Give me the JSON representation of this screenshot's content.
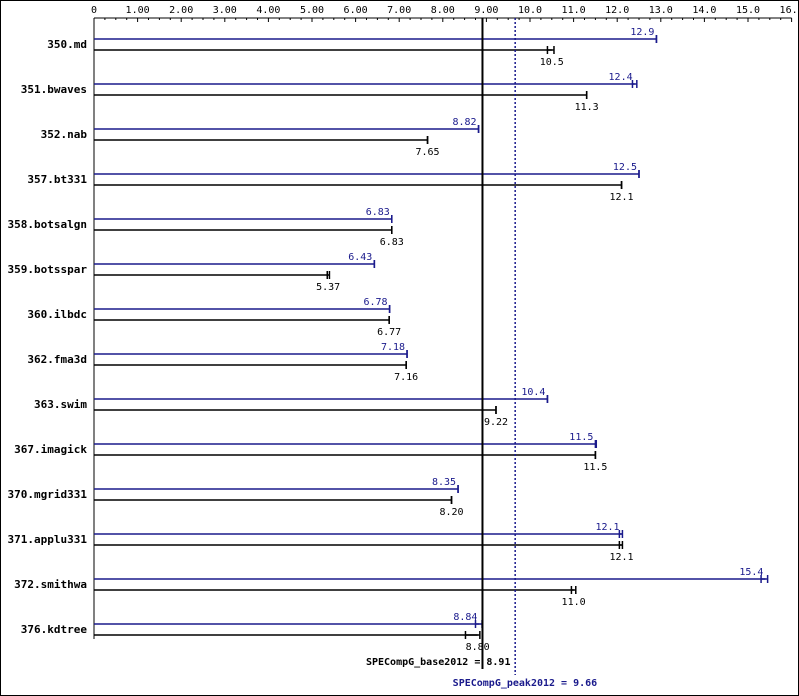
{
  "chart_data": {
    "type": "bar",
    "orientation": "horizontal",
    "xlim": [
      0,
      16.0
    ],
    "x_ticks": [
      "0",
      "1.00",
      "2.00",
      "3.00",
      "4.00",
      "5.00",
      "6.00",
      "7.00",
      "8.00",
      "9.00",
      "10.0",
      "11.0",
      "12.0",
      "13.0",
      "14.0",
      "15.0",
      "16.0"
    ],
    "x_tick_values": [
      0,
      1,
      2,
      3,
      4,
      5,
      6,
      7,
      8,
      9,
      10,
      11,
      12,
      13,
      14,
      15,
      16
    ],
    "colors": {
      "peak": "#1a1a8c",
      "base": "#000000",
      "axis": "#000000"
    },
    "categories": [
      "350.md",
      "351.bwaves",
      "352.nab",
      "357.bt331",
      "358.botsalgn",
      "359.botsspar",
      "360.ilbdc",
      "362.fma3d",
      "363.swim",
      "367.imagick",
      "370.mgrid331",
      "371.applu331",
      "372.smithwa",
      "376.kdtree"
    ],
    "series": [
      {
        "key": "peak",
        "values": [
          12.9,
          12.4,
          8.82,
          12.5,
          6.83,
          6.43,
          6.78,
          7.18,
          10.4,
          11.5,
          8.35,
          12.1,
          15.4,
          8.84
        ],
        "labels": [
          "12.9",
          "12.4",
          "8.82",
          "12.5",
          "6.83",
          "6.43",
          "6.78",
          "7.18",
          "10.4",
          "11.5",
          "8.35",
          "12.1",
          "15.4",
          "8.84"
        ],
        "whisker_min": [
          12.9,
          12.35,
          8.82,
          12.5,
          6.83,
          6.43,
          6.78,
          7.18,
          10.4,
          11.5,
          8.35,
          12.05,
          15.3,
          8.75
        ],
        "whisker_max": [
          12.9,
          12.45,
          8.82,
          12.5,
          6.83,
          6.43,
          6.78,
          7.18,
          10.4,
          11.52,
          8.35,
          12.12,
          15.45,
          8.9
        ]
      },
      {
        "key": "base",
        "values": [
          10.5,
          11.3,
          7.65,
          12.1,
          6.83,
          5.37,
          6.77,
          7.16,
          9.22,
          11.5,
          8.2,
          12.1,
          11.0,
          8.8
        ],
        "labels": [
          "10.5",
          "11.3",
          "7.65",
          "12.1",
          "6.83",
          "5.37",
          "6.77",
          "7.16",
          "9.22",
          "11.5",
          "8.20",
          "12.1",
          "11.0",
          "8.80"
        ],
        "whisker_min": [
          10.4,
          11.3,
          7.65,
          12.1,
          6.83,
          5.35,
          6.77,
          7.16,
          9.22,
          11.5,
          8.2,
          12.05,
          10.95,
          8.52
        ],
        "whisker_max": [
          10.55,
          11.3,
          7.65,
          12.1,
          6.83,
          5.4,
          6.77,
          7.16,
          9.22,
          11.5,
          8.2,
          12.12,
          11.05,
          8.85
        ]
      }
    ],
    "reference_lines": [
      {
        "key": "base_mean",
        "value": 8.91,
        "label": "SPECompG_base2012 = 8.91",
        "style": "solid"
      },
      {
        "key": "peak_mean",
        "value": 9.66,
        "label": "SPECompG_peak2012 = 9.66",
        "style": "dotted"
      }
    ]
  }
}
